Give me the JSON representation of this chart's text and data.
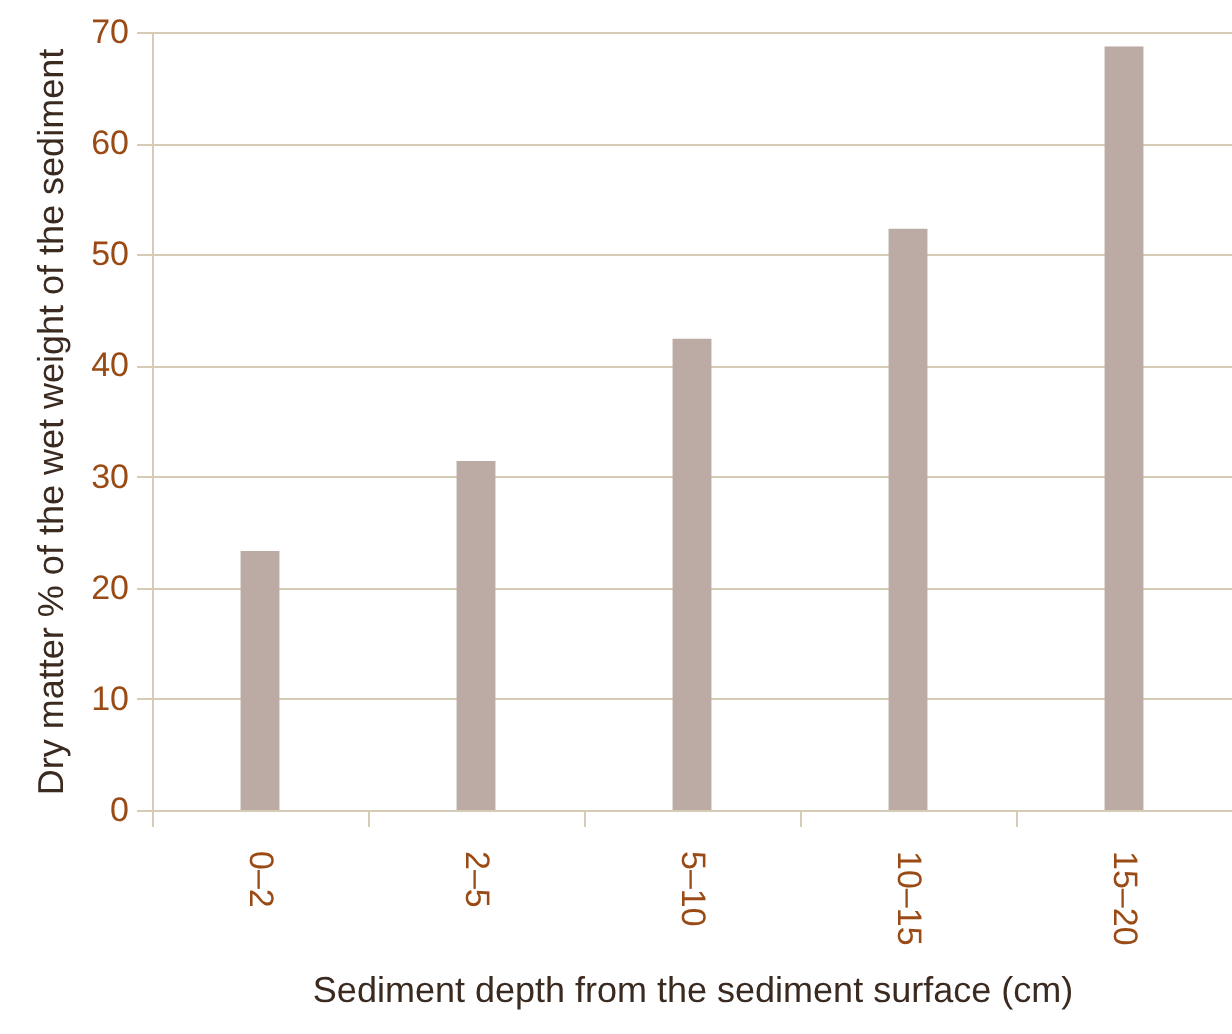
{
  "chart_data": {
    "type": "bar",
    "xlabel": "Sediment depth from the sediment surface (cm)",
    "ylabel": "Dry matter % of the wet weight of the sediment",
    "categories": [
      "0–2",
      "2–5",
      "5–10",
      "10–15",
      "15–20"
    ],
    "values": [
      23.3,
      31.4,
      42.4,
      52.3,
      68.7
    ],
    "color": "#bcaaa4",
    "ylim": [
      0,
      70
    ],
    "yticks": [
      0,
      10,
      20,
      30,
      40,
      50,
      60,
      70
    ],
    "grid": "y"
  }
}
